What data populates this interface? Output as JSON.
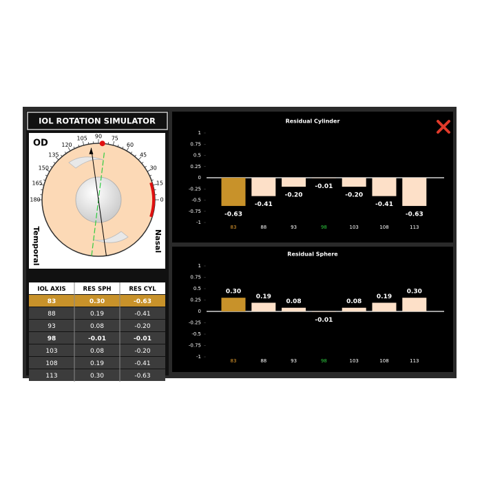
{
  "header": {
    "title": "IOL ROTATION SIMULATOR"
  },
  "dial": {
    "eye": "OD",
    "left": "Temporal",
    "right": "Nasal",
    "angles": [
      180,
      165,
      150,
      135,
      120,
      105,
      90,
      75,
      60,
      45,
      30,
      15,
      0
    ]
  },
  "table": {
    "header": [
      "IOL AXIS",
      "RES SPH",
      "RES CYL"
    ],
    "rows": [
      [
        "83",
        "0.30",
        "-0.63"
      ],
      [
        "88",
        "0.19",
        "-0.41"
      ],
      [
        "93",
        "0.08",
        "-0.20"
      ],
      [
        "98",
        "-0.01",
        "-0.01"
      ],
      [
        "103",
        "0.08",
        "-0.20"
      ],
      [
        "108",
        "0.19",
        "-0.41"
      ],
      [
        "113",
        "0.30",
        "-0.63"
      ]
    ]
  },
  "chart_data": [
    {
      "type": "bar",
      "title": "Residual Cylinder",
      "categories": [
        "83",
        "88",
        "93",
        "98",
        "103",
        "108",
        "113"
      ],
      "values": [
        -0.63,
        -0.41,
        -0.2,
        -0.01,
        -0.2,
        -0.41,
        -0.63
      ],
      "value_labels": [
        "-0.63",
        "-0.41",
        "-0.20",
        "-0.01",
        "-0.20",
        "-0.41",
        "-0.63"
      ],
      "colors": [
        "#c8922a",
        "#fde0c8",
        "#fde0c8",
        "#fde0c8",
        "#fde0c8",
        "#fde0c8",
        "#fde0c8"
      ],
      "category_colors": [
        "#e8a030",
        "#ffffff",
        "#ffffff",
        "#2ecc40",
        "#ffffff",
        "#ffffff",
        "#ffffff"
      ],
      "ylim": [
        -1,
        1
      ],
      "yticks": [
        1,
        0.75,
        0.5,
        0.25,
        0,
        -0.25,
        -0.5,
        -0.75,
        -1
      ]
    },
    {
      "type": "bar",
      "title": "Residual Sphere",
      "categories": [
        "83",
        "88",
        "93",
        "98",
        "103",
        "108",
        "113"
      ],
      "values": [
        0.3,
        0.19,
        0.08,
        -0.01,
        0.08,
        0.19,
        0.3
      ],
      "value_labels": [
        "0.30",
        "0.19",
        "0.08",
        "-0.01",
        "0.08",
        "0.19",
        "0.30"
      ],
      "colors": [
        "#c8922a",
        "#fde0c8",
        "#fde0c8",
        "#fde0c8",
        "#fde0c8",
        "#fde0c8",
        "#fde0c8"
      ],
      "category_colors": [
        "#e8a030",
        "#ffffff",
        "#ffffff",
        "#2ecc40",
        "#ffffff",
        "#ffffff",
        "#ffffff"
      ],
      "ylim": [
        -1,
        1
      ],
      "yticks": [
        1,
        0.75,
        0.5,
        0.25,
        0,
        -0.25,
        -0.5,
        -0.75,
        -1
      ]
    }
  ]
}
